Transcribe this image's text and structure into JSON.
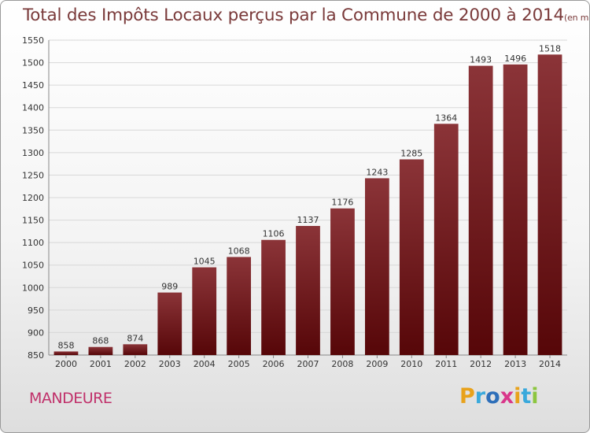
{
  "chart_data": {
    "type": "bar",
    "title": "Total des Impôts Locaux perçus par la Commune de 2000 à 2014",
    "unit_label": "(en milliers d'€)",
    "categories": [
      "2000",
      "2001",
      "2002",
      "2003",
      "2004",
      "2005",
      "2006",
      "2007",
      "2008",
      "2009",
      "2010",
      "2011",
      "2012",
      "2013",
      "2014"
    ],
    "values": [
      858,
      868,
      874,
      989,
      1045,
      1068,
      1106,
      1137,
      1176,
      1243,
      1285,
      1364,
      1493,
      1496,
      1518
    ],
    "ylim": [
      850,
      1550
    ],
    "yticks": [
      850,
      900,
      950,
      1000,
      1050,
      1100,
      1150,
      1200,
      1250,
      1300,
      1350,
      1400,
      1450,
      1500,
      1550
    ],
    "grid": true,
    "bar_color_top": "#8b3438",
    "bar_color_bottom": "#560608"
  },
  "footer": {
    "commune_name": "MANDEURE",
    "brand": [
      "P",
      "r",
      "o",
      "x",
      "i",
      "t",
      "i"
    ],
    "brand_colors": [
      "#e8a21b",
      "#3aa9dc",
      "#2e6fb9",
      "#d9378a",
      "#e8a21b",
      "#3aa9dc",
      "#8cc63f"
    ]
  }
}
